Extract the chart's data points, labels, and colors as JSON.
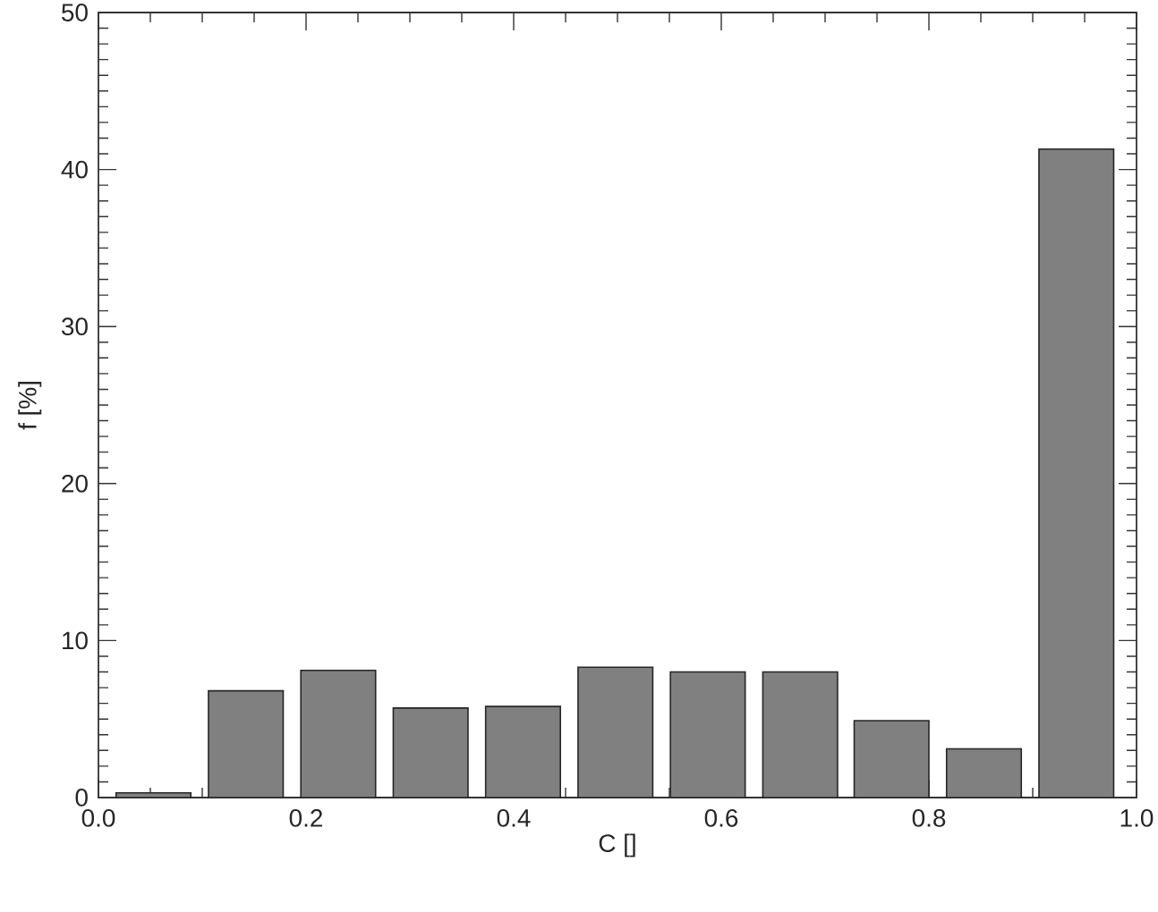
{
  "chart_data": {
    "type": "bar",
    "x": [
      0.053,
      0.142,
      0.231,
      0.32,
      0.409,
      0.498,
      0.587,
      0.676,
      0.764,
      0.853,
      0.942
    ],
    "values": [
      0.3,
      6.8,
      8.1,
      5.7,
      5.8,
      8.3,
      8.0,
      8.0,
      4.9,
      3.1,
      41.3
    ],
    "color": "#808080",
    "xlabel": "C []",
    "ylabel": "f [%]",
    "xlim": [
      0,
      1
    ],
    "ylim": [
      0,
      50
    ],
    "xticks": [
      {
        "value": 0,
        "label": "0.0"
      },
      0.2,
      0.4,
      0.6,
      0.8,
      {
        "value": 1,
        "label": "1.0"
      }
    ],
    "yticks": [
      0,
      10,
      20,
      30,
      40,
      50
    ]
  }
}
